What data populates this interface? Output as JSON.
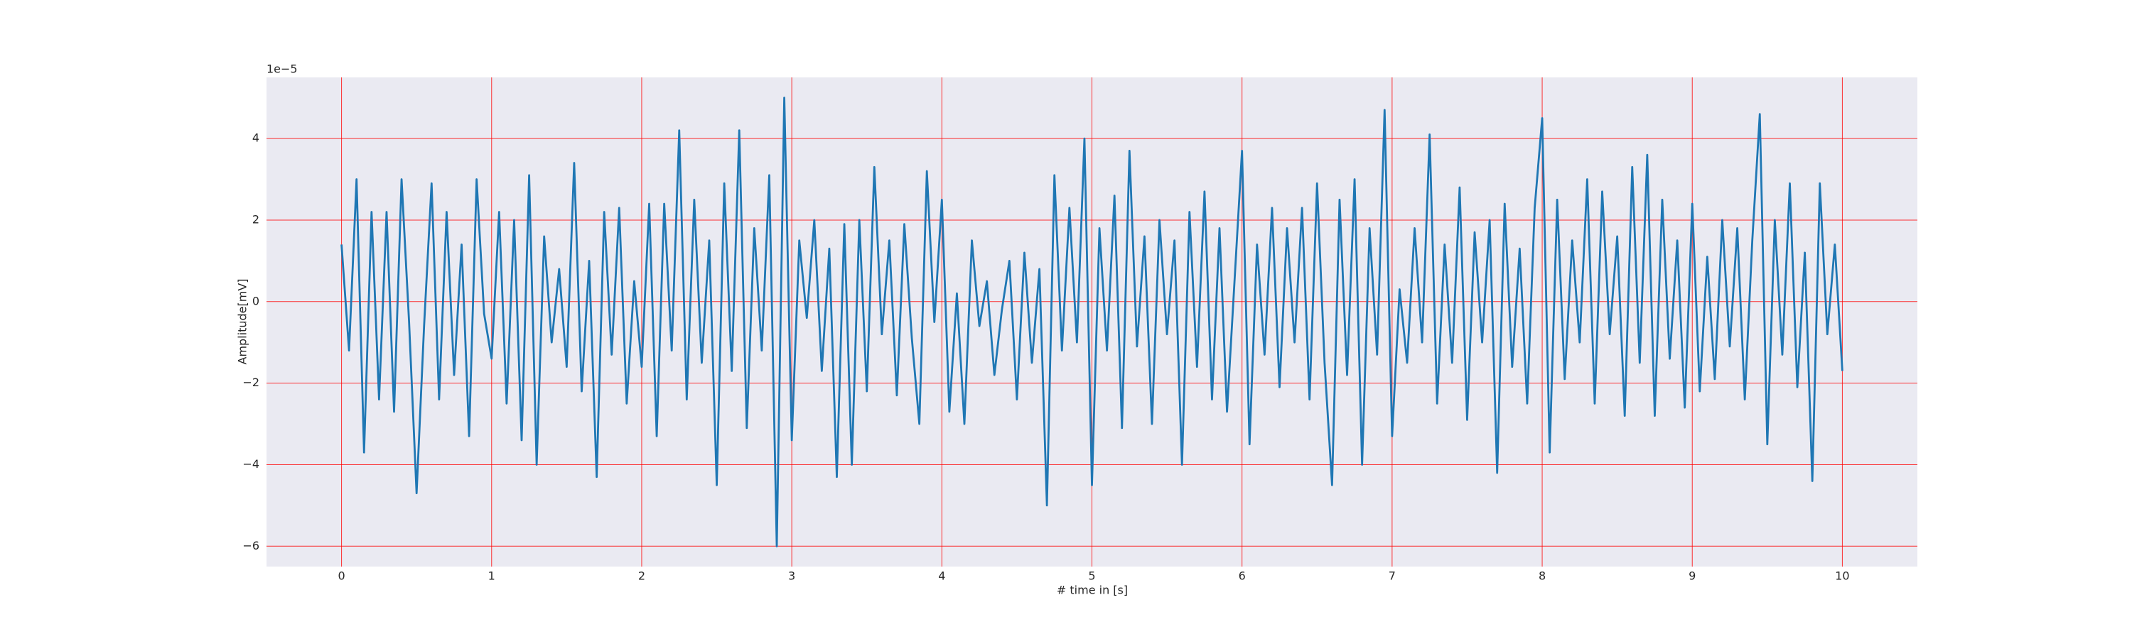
{
  "chart_data": {
    "type": "line",
    "xlabel": "# time in [s]",
    "ylabel": "Amplitude[mV]",
    "y_offset_label": "1e−5",
    "x": [
      0,
      0.05,
      0.1,
      0.15,
      0.2,
      0.25,
      0.3,
      0.35,
      0.4,
      0.45,
      0.5,
      0.55,
      0.6,
      0.65,
      0.7,
      0.75,
      0.8,
      0.85,
      0.9,
      0.95,
      1,
      1.05,
      1.1,
      1.15,
      1.2,
      1.25,
      1.3,
      1.35,
      1.4,
      1.45,
      1.5,
      1.55,
      1.6,
      1.65,
      1.7,
      1.75,
      1.8,
      1.85,
      1.9,
      1.95,
      2,
      2.05,
      2.1,
      2.15,
      2.2,
      2.25,
      2.3,
      2.35,
      2.4,
      2.45,
      2.5,
      2.55,
      2.6,
      2.65,
      2.7,
      2.75,
      2.8,
      2.85,
      2.9,
      2.95,
      3,
      3.05,
      3.1,
      3.15,
      3.2,
      3.25,
      3.3,
      3.35,
      3.4,
      3.45,
      3.5,
      3.55,
      3.6,
      3.65,
      3.7,
      3.75,
      3.8,
      3.85,
      3.9,
      3.95,
      4,
      4.05,
      4.1,
      4.15,
      4.2,
      4.25,
      4.3,
      4.35,
      4.4,
      4.45,
      4.5,
      4.55,
      4.6,
      4.65,
      4.7,
      4.75,
      4.8,
      4.85,
      4.9,
      4.95,
      5,
      5.05,
      5.1,
      5.15,
      5.2,
      5.25,
      5.3,
      5.35,
      5.4,
      5.45,
      5.5,
      5.55,
      5.6,
      5.65,
      5.7,
      5.75,
      5.8,
      5.85,
      5.9,
      5.95,
      6,
      6.05,
      6.1,
      6.15,
      6.2,
      6.25,
      6.3,
      6.35,
      6.4,
      6.45,
      6.5,
      6.55,
      6.6,
      6.65,
      6.7,
      6.75,
      6.8,
      6.85,
      6.9,
      6.95,
      7,
      7.05,
      7.1,
      7.15,
      7.2,
      7.25,
      7.3,
      7.35,
      7.4,
      7.45,
      7.5,
      7.55,
      7.6,
      7.65,
      7.7,
      7.75,
      7.8,
      7.85,
      7.9,
      7.95,
      8,
      8.05,
      8.1,
      8.15,
      8.2,
      8.25,
      8.3,
      8.35,
      8.4,
      8.45,
      8.5,
      8.55,
      8.6,
      8.65,
      8.7,
      8.75,
      8.8,
      8.85,
      8.9,
      8.95,
      9,
      9.05,
      9.1,
      9.15,
      9.2,
      9.25,
      9.3,
      9.35,
      9.4,
      9.45,
      9.5,
      9.55,
      9.6,
      9.65,
      9.7,
      9.75,
      9.8,
      9.85,
      9.9,
      9.95,
      10
    ],
    "series": [
      {
        "color": "#1f77b4",
        "values": [
          1.4,
          -1.2,
          3.0,
          -3.7,
          2.2,
          -2.4,
          2.2,
          -2.7,
          3.0,
          -0.5,
          -4.7,
          -0.6,
          2.9,
          -2.4,
          2.2,
          -1.8,
          1.4,
          -3.3,
          3.0,
          -0.3,
          -1.4,
          2.2,
          -2.5,
          2.0,
          -3.4,
          3.1,
          -4.0,
          1.6,
          -1.0,
          0.8,
          -1.6,
          3.4,
          -2.2,
          1.0,
          -4.3,
          2.2,
          -1.3,
          2.3,
          -2.5,
          0.5,
          -1.6,
          2.4,
          -3.3,
          2.4,
          -1.2,
          4.2,
          -2.4,
          2.5,
          -1.5,
          1.5,
          -4.5,
          2.9,
          -1.7,
          4.2,
          -3.1,
          1.8,
          -1.2,
          3.1,
          -6.0,
          5.0,
          -3.4,
          1.5,
          -0.4,
          2.0,
          -1.7,
          1.3,
          -4.3,
          1.9,
          -4.0,
          2.0,
          -2.2,
          3.3,
          -0.8,
          1.5,
          -2.3,
          1.9,
          -0.9,
          -3.0,
          3.2,
          -0.5,
          2.5,
          -2.7,
          0.2,
          -3.0,
          1.5,
          -0.6,
          0.5,
          -1.8,
          -0.2,
          1.0,
          -2.4,
          1.2,
          -1.5,
          0.8,
          -5.0,
          3.1,
          -1.2,
          2.3,
          -1.0,
          4.0,
          -4.5,
          1.8,
          -1.2,
          2.6,
          -3.1,
          3.7,
          -1.1,
          1.6,
          -3.0,
          2.0,
          -0.8,
          1.5,
          -4.0,
          2.2,
          -1.6,
          2.7,
          -2.4,
          1.8,
          -2.7,
          0.5,
          3.7,
          -3.5,
          1.4,
          -1.3,
          2.3,
          -2.1,
          1.8,
          -1.0,
          2.3,
          -2.4,
          2.9,
          -1.5,
          -4.5,
          2.5,
          -1.8,
          3.0,
          -4.0,
          1.8,
          -1.3,
          4.7,
          -3.3,
          0.3,
          -1.5,
          1.8,
          -1.0,
          4.1,
          -2.5,
          1.4,
          -1.5,
          2.8,
          -2.9,
          1.7,
          -1.0,
          2.0,
          -4.2,
          2.4,
          -1.6,
          1.3,
          -2.5,
          2.3,
          4.5,
          -3.7,
          2.5,
          -1.9,
          1.5,
          -1.0,
          3.0,
          -2.5,
          2.7,
          -0.8,
          1.6,
          -2.8,
          3.3,
          -1.5,
          3.6,
          -2.8,
          2.5,
          -1.4,
          1.5,
          -2.6,
          2.4,
          -2.2,
          1.1,
          -1.9,
          2.0,
          -1.1,
          1.8,
          -2.4,
          1.5,
          4.6,
          -3.5,
          2.0,
          -1.3,
          2.9,
          -2.1,
          1.2,
          -4.4,
          2.9,
          -0.8,
          1.4,
          -1.7
        ]
      }
    ],
    "xlim": [
      -0.5,
      10.5
    ],
    "xticks": [
      0,
      1,
      2,
      3,
      4,
      5,
      6,
      7,
      8,
      9,
      10
    ],
    "ylim": [
      -6.5,
      5.5
    ],
    "yticks": [
      {
        "value": -6,
        "label": "−6"
      },
      {
        "value": -4,
        "label": "−4"
      },
      {
        "value": -2,
        "label": "−2"
      },
      0,
      2,
      4
    ],
    "grid": true,
    "grid_color": "#ff0000",
    "background": "#eaeaf2"
  }
}
